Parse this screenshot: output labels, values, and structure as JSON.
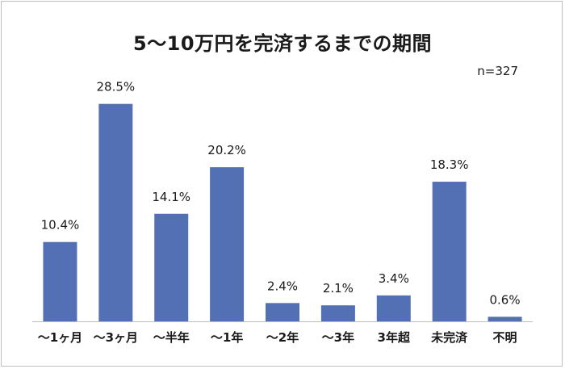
{
  "chart_data": {
    "type": "bar",
    "title": "5～10万円を完済するまでの期間",
    "note": "n=327",
    "categories": [
      "～1ヶ月",
      "～3ヶ月",
      "～半年",
      "～1年",
      "～2年",
      "～3年",
      "3年超",
      "未完済",
      "不明"
    ],
    "values": [
      10.4,
      28.5,
      14.1,
      20.2,
      2.4,
      2.1,
      3.4,
      18.3,
      0.6
    ],
    "value_labels": [
      "10.4%",
      "28.5%",
      "14.1%",
      "20.2%",
      "2.4%",
      "2.1%",
      "3.4%",
      "18.3%",
      "0.6%"
    ],
    "xlabel": "",
    "ylabel": "",
    "ylim": [
      0,
      30
    ],
    "grid": false,
    "legend": "none",
    "bar_color": "#5470b4"
  }
}
